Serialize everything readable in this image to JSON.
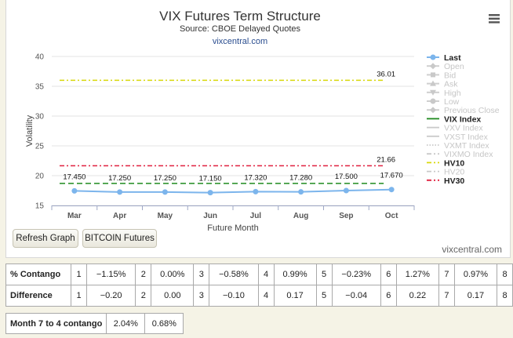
{
  "chart_data": {
    "type": "line",
    "title": "VIX Futures Term Structure",
    "subtitle": "Source: CBOE Delayed Quotes",
    "credit_link": "vixcentral.com",
    "xlabel": "Future Month",
    "ylabel": "Volatility",
    "ylim": [
      15,
      40
    ],
    "yticks": [
      15,
      20,
      25,
      30,
      35,
      40
    ],
    "categories": [
      "Mar",
      "Apr",
      "May",
      "Jun",
      "Jul",
      "Aug",
      "Sep",
      "Oct"
    ],
    "grid": true,
    "legend_position": "right",
    "series": [
      {
        "name": "Last",
        "values": [
          17.45,
          17.25,
          17.25,
          17.15,
          17.32,
          17.28,
          17.5,
          17.67
        ],
        "labels": [
          "17.450",
          "17.250",
          "17.250",
          "17.150",
          "17.320",
          "17.280",
          "17.500",
          "17.670"
        ],
        "color": "#7cb5ec",
        "visible": true
      }
    ],
    "reference_lines": [
      {
        "name": "HV10",
        "value": 36.01,
        "label": "36.01",
        "color": "#d8d80a"
      },
      {
        "name": "HV30",
        "value": 21.66,
        "label": "21.66",
        "color": "#e0203f"
      },
      {
        "name": "VIX Index",
        "value": 18.7,
        "label": "",
        "color": "#1e8a1e"
      }
    ],
    "legend": [
      {
        "name": "Last",
        "active": true,
        "color": "#7cb5ec",
        "marker": "circle"
      },
      {
        "name": "Open",
        "active": false,
        "marker": "diamond"
      },
      {
        "name": "Bid",
        "active": false,
        "marker": "square"
      },
      {
        "name": "Ask",
        "active": false,
        "marker": "triangle"
      },
      {
        "name": "High",
        "active": false,
        "marker": "triangle-down"
      },
      {
        "name": "Low",
        "active": false,
        "marker": "circle"
      },
      {
        "name": "Previous Close",
        "active": false,
        "marker": "diamond"
      },
      {
        "name": "VIX Index",
        "active": true,
        "color": "#1e8a1e",
        "dash": "solid"
      },
      {
        "name": "VXV Index",
        "active": false,
        "dash": "solid"
      },
      {
        "name": "VXST Index",
        "active": false,
        "dash": "solid"
      },
      {
        "name": "VXMT Index",
        "active": false,
        "dash": "dotted"
      },
      {
        "name": "VIXMO Index",
        "active": false,
        "dash": "dashdot"
      },
      {
        "name": "HV10",
        "active": true,
        "color": "#d8d80a",
        "dash": "dashdot"
      },
      {
        "name": "HV20",
        "active": false,
        "dash": "dashdot"
      },
      {
        "name": "HV30",
        "active": true,
        "color": "#e0203f",
        "dash": "dashdot"
      }
    ]
  },
  "buttons": {
    "refresh": "Refresh Graph",
    "bitcoin": "BITCOIN Futures",
    "menu_icon": "hamburger-menu-icon"
  },
  "footer_credit": "vixcentral.com",
  "contango_table": {
    "rows": [
      {
        "label": "% Contango",
        "cells": [
          [
            "1",
            "-1.15%"
          ],
          [
            "2",
            "0.00%"
          ],
          [
            "3",
            "-0.58%"
          ],
          [
            "4",
            "0.99%"
          ],
          [
            "5",
            "-0.23%"
          ],
          [
            "6",
            "1.27%"
          ],
          [
            "7",
            "0.97%"
          ],
          [
            "8",
            ""
          ]
        ]
      },
      {
        "label": "Difference",
        "cells": [
          [
            "1",
            "-0.20"
          ],
          [
            "2",
            "0.00"
          ],
          [
            "3",
            "-0.10"
          ],
          [
            "4",
            "0.17"
          ],
          [
            "5",
            "-0.04"
          ],
          [
            "6",
            "0.22"
          ],
          [
            "7",
            "0.17"
          ],
          [
            "8",
            ""
          ]
        ]
      }
    ]
  },
  "month_contango": {
    "label": "Month 7 to 4 contango",
    "values": [
      "2.04%",
      "0.68%"
    ]
  }
}
